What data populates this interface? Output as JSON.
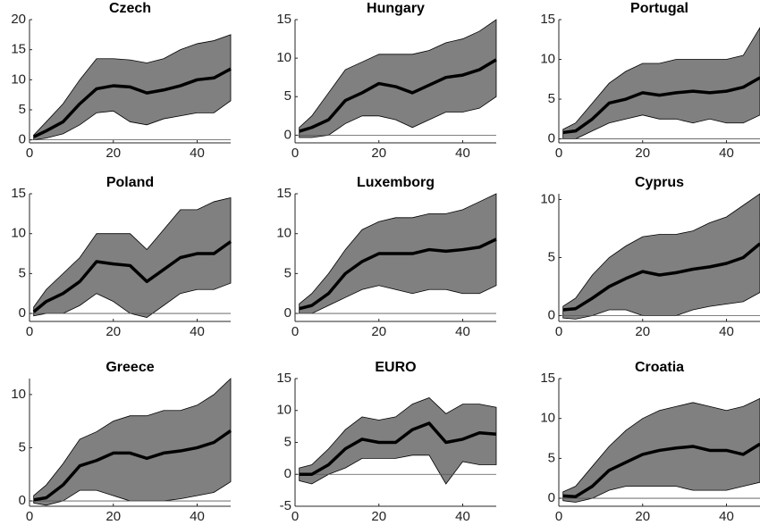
{
  "chart_data": [
    {
      "type": "line",
      "title": "Czech",
      "x": [
        1,
        4,
        8,
        12,
        16,
        20,
        24,
        28,
        32,
        36,
        40,
        44,
        48
      ],
      "values": [
        0.5,
        1.5,
        3,
        6,
        8.5,
        9,
        8.8,
        7.8,
        8.3,
        9,
        10,
        10.3,
        11.8
      ],
      "lower": [
        0,
        0.3,
        1,
        2.5,
        4.5,
        4.8,
        3,
        2.5,
        3.5,
        4,
        4.5,
        4.5,
        6.5
      ],
      "upper": [
        0.8,
        3,
        6,
        10,
        13.5,
        13.5,
        13.3,
        12.8,
        13.5,
        15,
        16,
        16.5,
        17.5
      ],
      "xlim": [
        0,
        48
      ],
      "xticks": [
        0,
        20,
        40
      ],
      "ylim": [
        -0.5,
        20
      ],
      "yticks": [
        0,
        5,
        10,
        15,
        20
      ],
      "hline": 0,
      "color": "#000000",
      "band_color": "#808080"
    },
    {
      "type": "line",
      "title": "Hungary",
      "x": [
        1,
        4,
        8,
        12,
        16,
        20,
        24,
        28,
        32,
        36,
        40,
        44,
        48
      ],
      "values": [
        0.5,
        1,
        2,
        4.5,
        5.5,
        6.7,
        6.3,
        5.5,
        6.5,
        7.5,
        7.8,
        8.5,
        9.8
      ],
      "lower": [
        -0.3,
        -0.3,
        0,
        1.5,
        2.5,
        2.5,
        2,
        1,
        2,
        3,
        3,
        3.5,
        5
      ],
      "upper": [
        1,
        2.5,
        5.5,
        8.5,
        9.5,
        10.5,
        10.5,
        10.5,
        11,
        12,
        12.5,
        13.5,
        15
      ],
      "xlim": [
        0,
        48
      ],
      "xticks": [
        0,
        20,
        40
      ],
      "ylim": [
        -1,
        15
      ],
      "yticks": [
        0,
        5,
        10,
        15
      ],
      "hline": 0,
      "color": "#000000",
      "band_color": "#808080"
    },
    {
      "type": "line",
      "title": "Portugal",
      "x": [
        1,
        4,
        8,
        12,
        16,
        20,
        24,
        28,
        32,
        36,
        40,
        44,
        48
      ],
      "values": [
        0.8,
        1,
        2.5,
        4.5,
        5,
        5.8,
        5.5,
        5.8,
        6,
        5.8,
        6,
        6.5,
        7.7
      ],
      "lower": [
        0,
        0,
        1,
        2,
        2.5,
        3,
        2.5,
        2.5,
        2,
        2.5,
        2,
        2,
        3
      ],
      "upper": [
        1.2,
        2,
        4.5,
        7,
        8.5,
        9.5,
        9.5,
        10,
        10,
        10,
        10,
        10.5,
        14
      ],
      "xlim": [
        0,
        48
      ],
      "xticks": [
        0,
        20,
        40
      ],
      "ylim": [
        -0.5,
        15
      ],
      "yticks": [
        0,
        5,
        10,
        15
      ],
      "hline": 0,
      "color": "#000000",
      "band_color": "#808080"
    },
    {
      "type": "line",
      "title": "Poland",
      "x": [
        1,
        4,
        8,
        12,
        16,
        20,
        24,
        28,
        32,
        36,
        40,
        44,
        48
      ],
      "values": [
        0.2,
        1.5,
        2.5,
        4,
        6.5,
        6.2,
        6,
        4,
        5.5,
        7,
        7.5,
        7.5,
        9
      ],
      "lower": [
        -0.3,
        0,
        0,
        1,
        2.5,
        1.5,
        0,
        -0.5,
        1,
        2.5,
        3,
        3,
        3.8
      ],
      "upper": [
        0.8,
        3,
        5,
        7,
        10,
        10,
        10,
        8,
        10.5,
        13,
        13,
        14,
        14.5
      ],
      "xlim": [
        0,
        48
      ],
      "xticks": [
        0,
        20,
        40
      ],
      "ylim": [
        -1,
        15
      ],
      "yticks": [
        0,
        5,
        10,
        15
      ],
      "hline": 0,
      "color": "#000000",
      "band_color": "#808080"
    },
    {
      "type": "line",
      "title": "Luxemborg",
      "x": [
        1,
        4,
        8,
        12,
        16,
        20,
        24,
        28,
        32,
        36,
        40,
        44,
        48
      ],
      "values": [
        0.6,
        1,
        2.5,
        5,
        6.5,
        7.5,
        7.5,
        7.5,
        8,
        7.8,
        8,
        8.3,
        9.3
      ],
      "lower": [
        0,
        0,
        1,
        2,
        3,
        3.5,
        3,
        2.5,
        3,
        3,
        2.5,
        2.5,
        3.5
      ],
      "upper": [
        1.2,
        2.5,
        5,
        8,
        10.5,
        11.5,
        12,
        12,
        12.5,
        12.5,
        13,
        14,
        15
      ],
      "xlim": [
        0,
        48
      ],
      "xticks": [
        0,
        20,
        40
      ],
      "ylim": [
        -1,
        15
      ],
      "yticks": [
        0,
        5,
        10,
        15
      ],
      "hline": 0,
      "color": "#000000",
      "band_color": "#808080"
    },
    {
      "type": "line",
      "title": "Cyprus",
      "x": [
        1,
        4,
        8,
        12,
        16,
        20,
        24,
        28,
        32,
        36,
        40,
        44,
        48
      ],
      "values": [
        0.5,
        0.6,
        1.5,
        2.5,
        3.2,
        3.8,
        3.5,
        3.7,
        4,
        4.2,
        4.5,
        5,
        6.2
      ],
      "lower": [
        -0.2,
        -0.3,
        0,
        0.5,
        0.5,
        0,
        0,
        0,
        0.5,
        0.8,
        1,
        1.2,
        2
      ],
      "upper": [
        0.8,
        1.5,
        3.5,
        5,
        6,
        6.8,
        7,
        7,
        7.3,
        8,
        8.5,
        9.5,
        10.5
      ],
      "xlim": [
        0,
        48
      ],
      "xticks": [
        0,
        20,
        40
      ],
      "ylim": [
        -0.5,
        10.5
      ],
      "yticks": [
        0,
        5,
        10
      ],
      "hline": 0,
      "color": "#000000",
      "band_color": "#808080"
    },
    {
      "type": "line",
      "title": "Greece",
      "x": [
        1,
        4,
        8,
        12,
        16,
        20,
        24,
        28,
        32,
        36,
        40,
        44,
        48
      ],
      "values": [
        0.1,
        0.3,
        1.5,
        3.3,
        3.8,
        4.5,
        4.5,
        4,
        4.5,
        4.7,
        5,
        5.5,
        6.6
      ],
      "lower": [
        -0.2,
        -0.4,
        0,
        1,
        1,
        0.5,
        0,
        0,
        0,
        0.2,
        0.5,
        0.8,
        1.8
      ],
      "upper": [
        0.5,
        1.5,
        3.5,
        5.8,
        6.5,
        7.5,
        8,
        8,
        8.5,
        8.5,
        9,
        10,
        11.5
      ],
      "xlim": [
        0,
        48
      ],
      "xticks": [
        0,
        20,
        40
      ],
      "ylim": [
        -0.5,
        11.5
      ],
      "yticks": [
        0,
        5,
        10
      ],
      "hline": 0,
      "color": "#000000",
      "band_color": "#808080"
    },
    {
      "type": "line",
      "title": "EURO",
      "x": [
        1,
        4,
        8,
        12,
        16,
        20,
        24,
        28,
        32,
        36,
        40,
        44,
        48
      ],
      "values": [
        0,
        0,
        1.5,
        4,
        5.5,
        5,
        5,
        7,
        8,
        5,
        5.5,
        6.5,
        6.3
      ],
      "lower": [
        -1,
        -1.5,
        0,
        1,
        2.5,
        2.5,
        2.5,
        3,
        3,
        -1.5,
        2,
        1.5,
        1.5
      ],
      "upper": [
        1,
        1.5,
        4,
        7,
        9,
        8.5,
        9,
        11,
        12,
        9.5,
        11,
        11,
        10.5
      ],
      "xlim": [
        0,
        48
      ],
      "xticks": [
        0,
        20,
        40
      ],
      "ylim": [
        -5,
        15
      ],
      "yticks": [
        -5,
        0,
        5,
        10,
        15
      ],
      "hline": 0,
      "color": "#000000",
      "band_color": "#808080"
    },
    {
      "type": "line",
      "title": "Croatia",
      "x": [
        1,
        4,
        8,
        12,
        16,
        20,
        24,
        28,
        32,
        36,
        40,
        44,
        48
      ],
      "values": [
        0.3,
        0.2,
        1.5,
        3.5,
        4.5,
        5.5,
        6,
        6.3,
        6.5,
        6,
        6,
        5.5,
        6.8
      ],
      "lower": [
        -0.3,
        -0.5,
        0,
        1,
        1.5,
        1.5,
        1.5,
        1.5,
        1,
        1,
        1,
        1.5,
        2
      ],
      "upper": [
        0.8,
        1.5,
        4,
        6.5,
        8.5,
        10,
        11,
        11.5,
        12,
        11.5,
        11,
        11.5,
        12.5
      ],
      "xlim": [
        0,
        48
      ],
      "xticks": [
        0,
        20,
        40
      ],
      "ylim": [
        -1,
        15
      ],
      "yticks": [
        0,
        5,
        10,
        15
      ],
      "hline": 0,
      "color": "#000000",
      "band_color": "#808080"
    }
  ]
}
